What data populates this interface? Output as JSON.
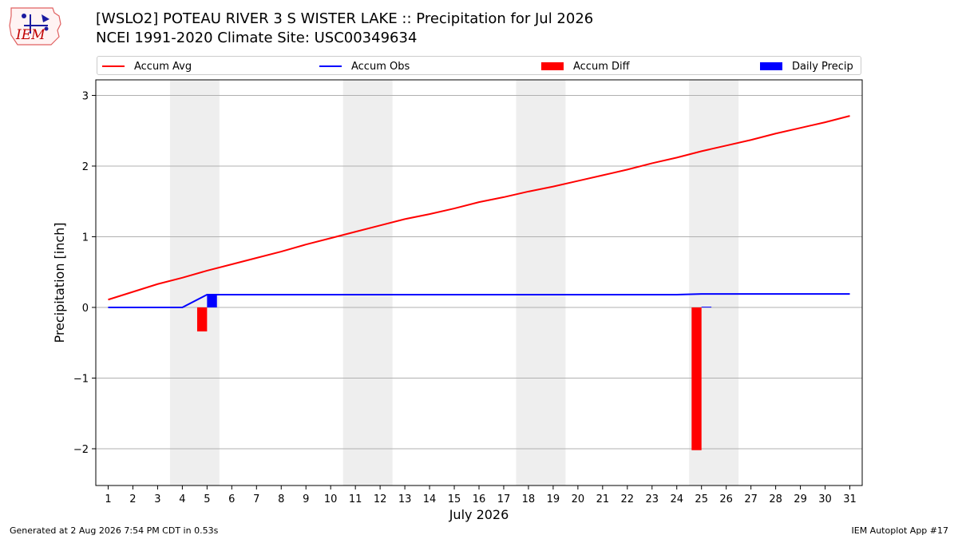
{
  "header": {
    "title": "[WSLO2] POTEAU RIVER 3 S WISTER LAKE :: Precipitation for Jul 2026",
    "subtitle": "NCEI 1991-2020 Climate Site: USC00349634",
    "logo_text": "IEM"
  },
  "footer": {
    "generated": "Generated at 2 Aug 2026 7:54 PM CDT in 0.53s",
    "app": "IEM Autoplot App #17"
  },
  "legend": {
    "items": [
      {
        "label": "Accum Avg",
        "color": "#ff0000",
        "kind": "line"
      },
      {
        "label": "Accum Obs",
        "color": "#0000ff",
        "kind": "line"
      },
      {
        "label": "Accum Diff",
        "color": "#ff0000",
        "kind": "box"
      },
      {
        "label": "Daily Precip",
        "color": "#0000ff",
        "kind": "box"
      }
    ]
  },
  "chart_data": {
    "type": "bar",
    "xlabel": "July 2026",
    "ylabel": "Precipitation [inch]",
    "xlim": [
      0.5,
      31.5
    ],
    "ylim": [
      -2.52,
      3.22
    ],
    "yticks": [
      -2,
      -1,
      0,
      1,
      2,
      3
    ],
    "ytick_labels": [
      "−2",
      "−1",
      "0",
      "1",
      "2",
      "3"
    ],
    "x": [
      1,
      2,
      3,
      4,
      5,
      6,
      7,
      8,
      9,
      10,
      11,
      12,
      13,
      14,
      15,
      16,
      17,
      18,
      19,
      20,
      21,
      22,
      23,
      24,
      25,
      26,
      27,
      28,
      29,
      30,
      31
    ],
    "weekend_bands": [
      [
        3.5,
        5.5
      ],
      [
        10.5,
        12.5
      ],
      [
        17.5,
        19.5
      ],
      [
        24.5,
        26.5
      ]
    ],
    "grid": "horizontal",
    "series": [
      {
        "name": "Accum Avg",
        "type": "line",
        "color": "#ff0000",
        "values": [
          0.11,
          0.22,
          0.33,
          0.42,
          0.52,
          0.61,
          0.7,
          0.79,
          0.89,
          0.98,
          1.07,
          1.16,
          1.25,
          1.32,
          1.4,
          1.49,
          1.56,
          1.64,
          1.71,
          1.79,
          1.87,
          1.95,
          2.04,
          2.12,
          2.21,
          2.29,
          2.37,
          2.46,
          2.54,
          2.62,
          2.71
        ]
      },
      {
        "name": "Accum Obs",
        "type": "line",
        "color": "#0000ff",
        "values": [
          0,
          0,
          0,
          0,
          0.18,
          0.18,
          0.18,
          0.18,
          0.18,
          0.18,
          0.18,
          0.18,
          0.18,
          0.18,
          0.18,
          0.18,
          0.18,
          0.18,
          0.18,
          0.18,
          0.18,
          0.18,
          0.18,
          0.18,
          0.19,
          0.19,
          0.19,
          0.19,
          0.19,
          0.19,
          0.19
        ]
      },
      {
        "name": "Accum Diff",
        "type": "bar",
        "color": "#ff0000",
        "x": [
          5,
          25
        ],
        "values": [
          -0.34,
          -2.02
        ]
      },
      {
        "name": "Daily Precip",
        "type": "bar",
        "color": "#0000ff",
        "x": [
          5,
          25
        ],
        "values": [
          0.18,
          0.01
        ]
      }
    ]
  }
}
